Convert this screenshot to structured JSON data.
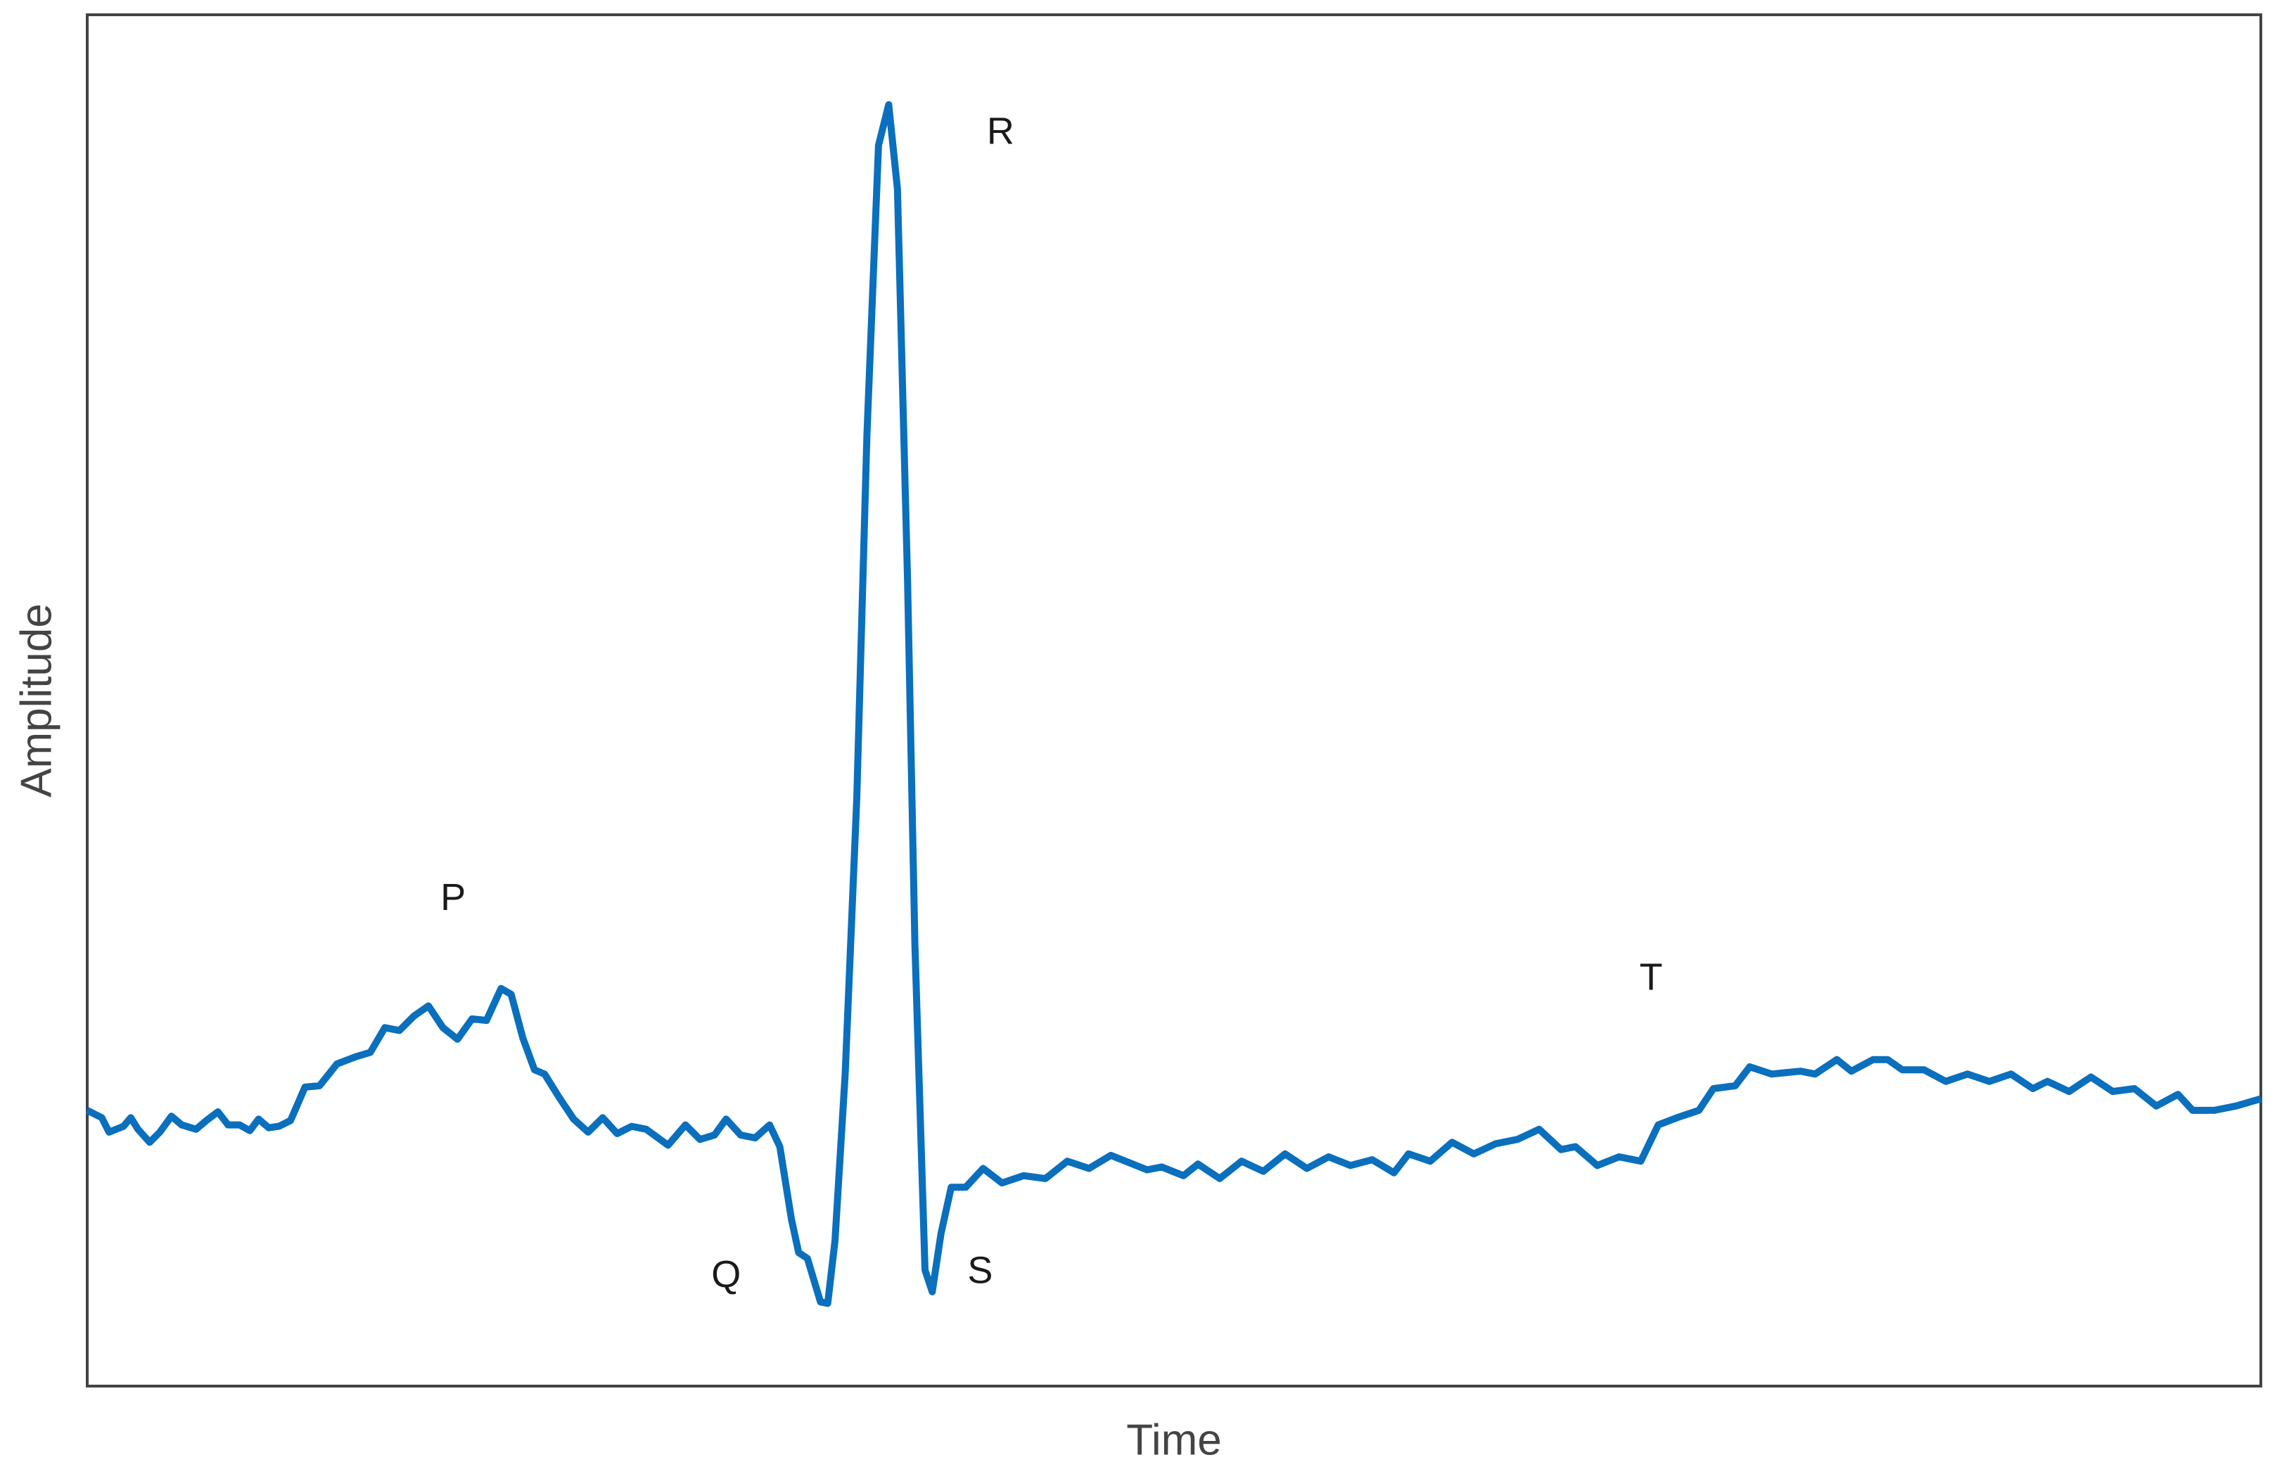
{
  "chart_data": {
    "type": "line",
    "xlabel": "Time",
    "ylabel": "Amplitude",
    "color": "#0a6fbd",
    "xlim": [
      0,
      1497
    ],
    "ylim": [
      -175,
      770
    ],
    "x": [
      0,
      10,
      15,
      25,
      30,
      35,
      43,
      50,
      58,
      65,
      75,
      82,
      90,
      97,
      105,
      112,
      118,
      125,
      132,
      140,
      150,
      160,
      172,
      185,
      195,
      205,
      215,
      225,
      235,
      245,
      255,
      265,
      275,
      285,
      292,
      300,
      308,
      315,
      325,
      335,
      345,
      355,
      365,
      375,
      385,
      400,
      412,
      422,
      432,
      440,
      450,
      460,
      470,
      477,
      485,
      490,
      496,
      505,
      510,
      515,
      522,
      530,
      537,
      545,
      552,
      558,
      565,
      570,
      577,
      582,
      588,
      595,
      605,
      617,
      630,
      645,
      660,
      675,
      690,
      705,
      730,
      740,
      755,
      765,
      780,
      795,
      810,
      825,
      840,
      855,
      870,
      885,
      900,
      910,
      925,
      940,
      955,
      970,
      985,
      1000,
      1015,
      1025,
      1040,
      1055,
      1070,
      1082,
      1095,
      1110,
      1120,
      1135,
      1145,
      1160,
      1180,
      1190,
      1205,
      1215,
      1230,
      1240,
      1250,
      1265,
      1280,
      1295,
      1310,
      1325,
      1340,
      1350,
      1365,
      1380,
      1395,
      1410,
      1425,
      1440,
      1450,
      1465,
      1480,
      1497
    ],
    "values": [
      15,
      10,
      0,
      4,
      10,
      2,
      -7,
      0,
      11,
      5,
      2,
      8,
      14,
      5,
      5,
      1,
      9,
      3,
      4,
      8,
      31,
      32,
      47,
      52,
      55,
      72,
      70,
      80,
      87,
      72,
      64,
      78,
      77,
      99,
      95,
      65,
      43,
      40,
      24,
      9,
      0,
      10,
      -1,
      4,
      2,
      -9,
      5,
      -5,
      -2,
      9,
      -2,
      -4,
      5,
      -10,
      -60,
      -83,
      -87,
      -117,
      -118,
      -75,
      40,
      230,
      480,
      680,
      708,
      650,
      380,
      130,
      -95,
      -110,
      -70,
      -38,
      -38,
      -25,
      -35,
      -30,
      -32,
      -20,
      -25,
      -16,
      -26,
      -24,
      -30,
      -22,
      -32,
      -20,
      -27,
      -15,
      -25,
      -17,
      -23,
      -19,
      -28,
      -15,
      -20,
      -7,
      -15,
      -8,
      -5,
      2,
      -12,
      -10,
      -23,
      -17,
      -20,
      5,
      10,
      15,
      30,
      32,
      45,
      40,
      42,
      40,
      50,
      42,
      50,
      50,
      43,
      43,
      35,
      40,
      35,
      40,
      30,
      35,
      28,
      38,
      28,
      30,
      18,
      26,
      15,
      15,
      18,
      23
    ],
    "annotations": [
      {
        "text": "P",
        "x": 252,
        "y": 160
      },
      {
        "text": "Q",
        "x": 440,
        "y": -100
      },
      {
        "text": "R",
        "x": 629,
        "y": 688
      },
      {
        "text": "S",
        "x": 615,
        "y": -97
      },
      {
        "text": "T",
        "x": 1077,
        "y": 105
      }
    ]
  }
}
